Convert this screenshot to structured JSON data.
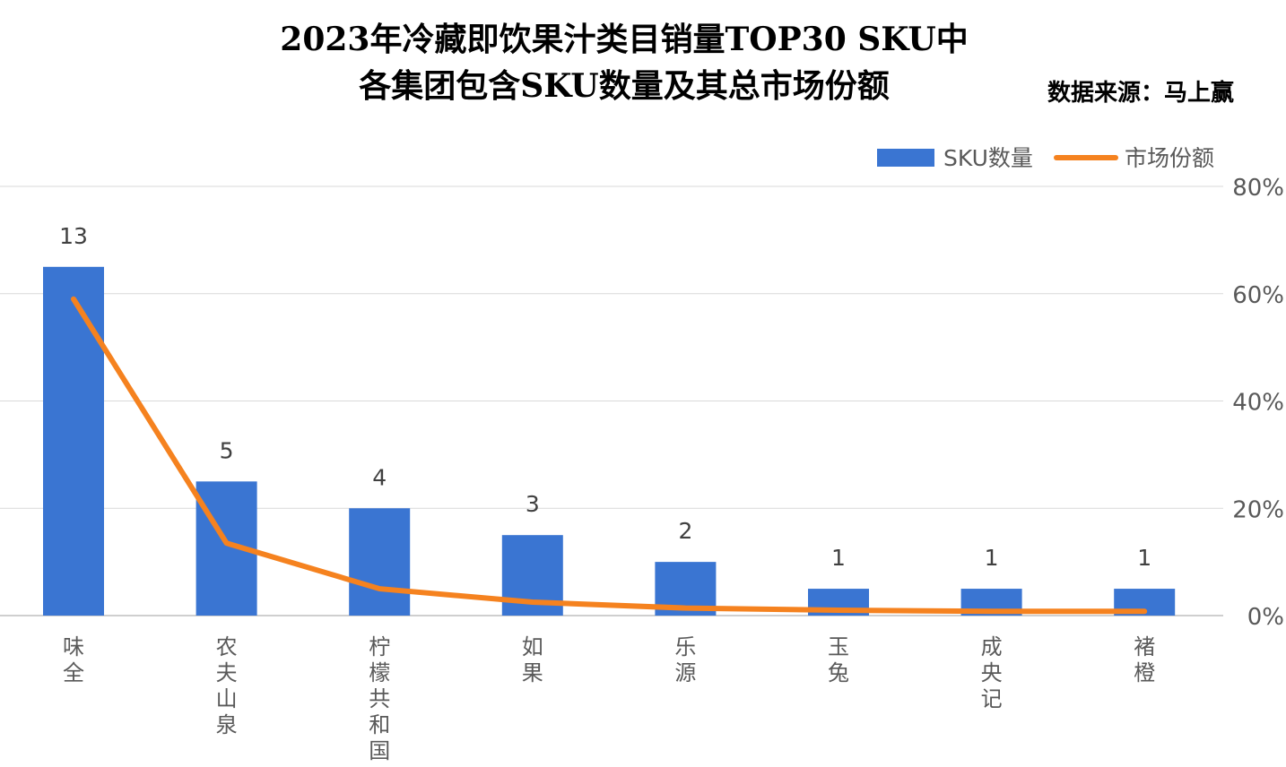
{
  "title_line1": "2023年冷藏即饮果汁类目销量TOP30 SKU中",
  "title_line2": "各集团包含SKU数量及其总市场份额",
  "source": "数据来源：马上赢",
  "colors": {
    "bar": "#3A75D2",
    "line": "#F5821F",
    "grid": "#D9D9D9",
    "axis": "#BFBFBF",
    "text": "#595959"
  },
  "chart_data": {
    "type": "bar",
    "title": "2023年冷藏即饮果汁类目销量TOP30 SKU中各集团包含SKU数量及其总市场份额",
    "categories": [
      "味全",
      "农夫山泉",
      "柠檬共和国",
      "如果",
      "乐源",
      "玉兔",
      "成央记",
      "褚橙"
    ],
    "series": [
      {
        "name": "SKU数量",
        "type": "bar",
        "axis": "left",
        "values": [
          13,
          5,
          4,
          3,
          2,
          1,
          1,
          1
        ],
        "data_labels": [
          "13",
          "5",
          "4",
          "3",
          "2",
          "1",
          "1",
          "1"
        ]
      },
      {
        "name": "市场份额",
        "type": "line",
        "axis": "right",
        "values": [
          59,
          13.5,
          5,
          2.5,
          1.4,
          1.0,
          0.8,
          0.8
        ]
      }
    ],
    "y_left_range": [
      0,
      16
    ],
    "y_right_range": [
      0,
      80
    ],
    "y_right_ticks": [
      "0%",
      "20%",
      "40%",
      "60%",
      "80%"
    ],
    "y_right_tick_values": [
      0,
      20,
      40,
      60,
      80
    ],
    "legend_position": "top-right",
    "grid": true
  }
}
